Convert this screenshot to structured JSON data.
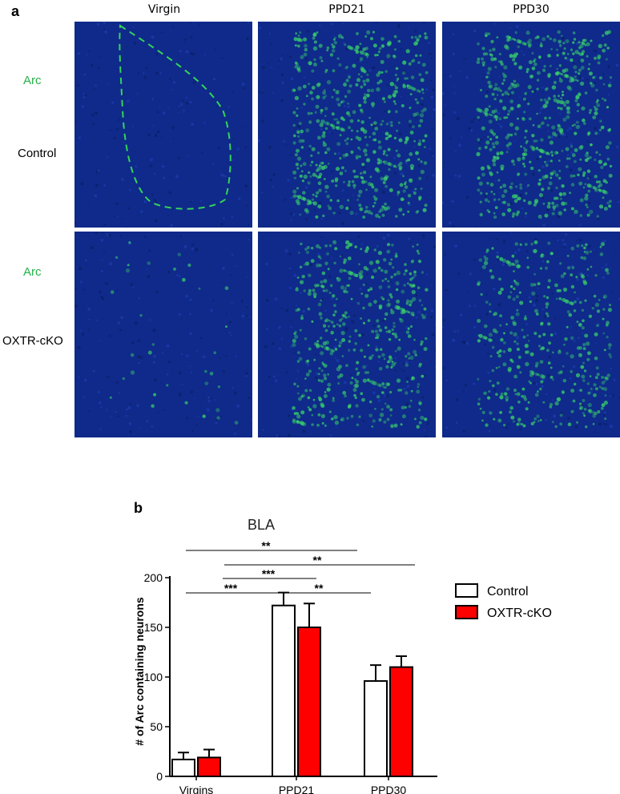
{
  "panel_a": {
    "letter": "a",
    "columns": [
      "Virgin",
      "PPD21",
      "PPD30"
    ],
    "rows": [
      {
        "stain": "Arc",
        "group": "Control"
      },
      {
        "stain": "Arc",
        "group": "OXTR-cKO"
      }
    ],
    "stain_color": "#27b14a",
    "tiles": [
      [
        {
          "signal": 0.0,
          "outlined": true
        },
        {
          "signal": 0.85,
          "outlined": false
        },
        {
          "signal": 0.9,
          "outlined": false
        }
      ],
      [
        {
          "signal": 0.05,
          "outlined": false
        },
        {
          "signal": 0.75,
          "outlined": false
        },
        {
          "signal": 0.6,
          "outlined": false
        }
      ]
    ],
    "background_color": "#0f2a8a",
    "signal_color": "#39d26a"
  },
  "panel_b": {
    "letter": "b"
  },
  "chart_data": {
    "type": "bar",
    "title": "BLA",
    "ylabel": "# of Arc containing neurons",
    "xlabel": "",
    "categories": [
      "Virgins",
      "PPD21",
      "PPD30"
    ],
    "ylim": [
      0,
      200
    ],
    "yticks": [
      0,
      50,
      100,
      150,
      200
    ],
    "series": [
      {
        "name": "Control",
        "color": "#ffffff",
        "values": [
          17,
          172,
          96
        ],
        "errors": [
          7,
          13,
          16
        ]
      },
      {
        "name": "OXTR-cKO",
        "color": "#ff0000",
        "values": [
          19,
          150,
          110
        ],
        "errors": [
          8,
          24,
          11
        ]
      }
    ],
    "legend_position": "right",
    "significance": [
      {
        "label": "**",
        "from": "Virgins",
        "to": "PPD21"
      },
      {
        "label": "**",
        "from": "PPD21",
        "to": "PPD30"
      },
      {
        "label": "***",
        "from": "Virgins",
        "to": "PPD21"
      },
      {
        "label": "***",
        "from": "Virgins",
        "to": "PPD21"
      },
      {
        "label": "**",
        "from": "Virgins",
        "to": "PPD30"
      }
    ]
  }
}
